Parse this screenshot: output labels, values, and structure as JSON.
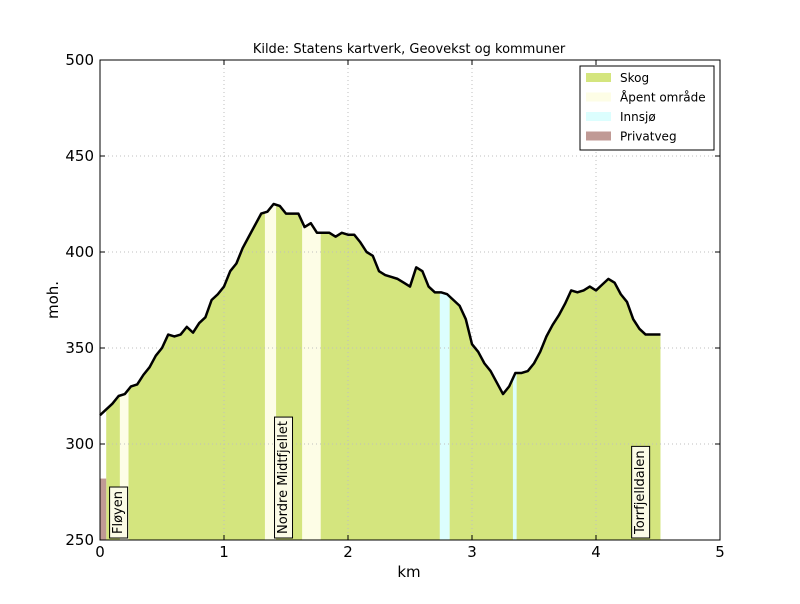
{
  "chart_data": {
    "type": "area",
    "title": "Kilde: Statens kartverk, Geovekst og kommuner",
    "xlabel": "km",
    "ylabel": "moh.",
    "xlim": [
      0,
      5
    ],
    "ylim": [
      250,
      500
    ],
    "xticks": [
      "0",
      "1",
      "2",
      "3",
      "4",
      "5"
    ],
    "yticks": [
      "250",
      "300",
      "350",
      "400",
      "450",
      "500"
    ],
    "grid": true,
    "legend_position": "top-right",
    "legend": [
      {
        "label": "Skog",
        "color": "#d4e57e"
      },
      {
        "label": "Åpent område",
        "color": "#fdfde6"
      },
      {
        "label": "Innsjø",
        "color": "#dcfefe"
      },
      {
        "label": "Privatveg",
        "color": "#c09a95"
      }
    ],
    "profile": {
      "km": [
        0.0,
        0.05,
        0.1,
        0.15,
        0.2,
        0.25,
        0.3,
        0.35,
        0.4,
        0.45,
        0.5,
        0.55,
        0.6,
        0.65,
        0.7,
        0.75,
        0.8,
        0.85,
        0.9,
        0.95,
        1.0,
        1.05,
        1.1,
        1.15,
        1.2,
        1.25,
        1.3,
        1.35,
        1.4,
        1.45,
        1.5,
        1.55,
        1.6,
        1.65,
        1.7,
        1.75,
        1.8,
        1.85,
        1.9,
        1.95,
        2.0,
        2.05,
        2.1,
        2.15,
        2.2,
        2.25,
        2.3,
        2.35,
        2.4,
        2.45,
        2.5,
        2.55,
        2.6,
        2.65,
        2.7,
        2.75,
        2.8,
        2.85,
        2.9,
        2.95,
        3.0,
        3.05,
        3.1,
        3.15,
        3.2,
        3.25,
        3.3,
        3.35,
        3.4,
        3.45,
        3.5,
        3.55,
        3.6,
        3.65,
        3.7,
        3.75,
        3.8,
        3.85,
        3.9,
        3.95,
        4.0,
        4.05,
        4.1,
        4.15,
        4.2,
        4.25,
        4.3,
        4.35,
        4.4,
        4.45,
        4.5,
        4.52
      ],
      "elev": [
        315,
        318,
        321,
        325,
        326,
        330,
        331,
        336,
        340,
        346,
        350,
        357,
        356,
        357,
        361,
        358,
        363,
        366,
        375,
        378,
        382,
        390,
        394,
        402,
        408,
        414,
        420,
        421,
        425,
        424,
        420,
        420,
        420,
        413,
        415,
        410,
        410,
        410,
        408,
        410,
        409,
        409,
        405,
        400,
        398,
        390,
        388,
        387,
        386,
        384,
        382,
        392,
        390,
        382,
        379,
        379,
        378,
        375,
        372,
        365,
        352,
        348,
        342,
        338,
        332,
        326,
        330,
        337,
        337,
        338,
        342,
        348,
        356,
        362,
        367,
        373,
        380,
        379,
        380,
        382,
        380,
        383,
        386,
        384,
        378,
        374,
        365,
        360,
        357,
        357,
        357,
        357
      ]
    },
    "segments": [
      {
        "type": "Privatveg",
        "from": 0.0,
        "to": 0.05,
        "top": 282
      },
      {
        "type": "Skog",
        "from": 0.05,
        "to": 0.16
      },
      {
        "type": "Åpent område",
        "from": 0.16,
        "to": 0.23
      },
      {
        "type": "Skog",
        "from": 0.23,
        "to": 1.33
      },
      {
        "type": "Åpent område",
        "from": 1.33,
        "to": 1.42
      },
      {
        "type": "Skog",
        "from": 1.42,
        "to": 1.63
      },
      {
        "type": "Åpent område",
        "from": 1.63,
        "to": 1.78
      },
      {
        "type": "Skog",
        "from": 1.78,
        "to": 2.74
      },
      {
        "type": "Innsjø",
        "from": 2.74,
        "to": 2.82
      },
      {
        "type": "Skog",
        "from": 2.82,
        "to": 3.33
      },
      {
        "type": "Innsjø",
        "from": 3.33,
        "to": 3.36
      },
      {
        "type": "Skog",
        "from": 3.36,
        "to": 4.52
      }
    ],
    "place_labels": [
      {
        "text": "Fløyen",
        "km": 0.15
      },
      {
        "text": "Nordre Midtfjellet",
        "km": 1.48
      },
      {
        "text": "Torrfjelldalen",
        "km": 4.36
      }
    ]
  }
}
